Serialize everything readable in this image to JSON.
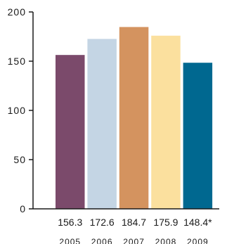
{
  "chart_data": {
    "type": "bar",
    "title": "",
    "xlabel": "",
    "ylabel": "",
    "ylim": [
      0,
      200
    ],
    "yticks": [
      0,
      50,
      100,
      150,
      200
    ],
    "ytick_labels": [
      "0",
      "50",
      "100",
      "150",
      "200"
    ],
    "grid": false,
    "categories": [
      "2005",
      "2006",
      "2007",
      "2008",
      "2009"
    ],
    "values": [
      156.3,
      172.6,
      184.7,
      175.9,
      148.4
    ],
    "value_labels": [
      "156.3",
      "172.6",
      "184.7",
      "175.9",
      "148.4*"
    ],
    "colors": [
      "#7b4a6b",
      "#c4d5e4",
      "#d4935f",
      "#fbe09e",
      "#006890"
    ]
  }
}
